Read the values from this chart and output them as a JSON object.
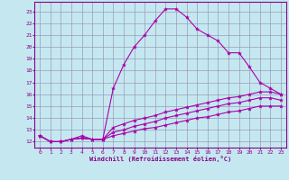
{
  "xlabel": "Windchill (Refroidissement éolien,°C)",
  "bg_color": "#c5e8f0",
  "grid_color": "#9999bb",
  "line_color": "#aa00aa",
  "xlim": [
    -0.5,
    23.5
  ],
  "ylim": [
    11.5,
    23.8
  ],
  "xticks": [
    0,
    1,
    2,
    3,
    4,
    5,
    6,
    7,
    8,
    9,
    10,
    11,
    12,
    13,
    14,
    15,
    16,
    17,
    18,
    19,
    20,
    21,
    22,
    23
  ],
  "yticks": [
    12,
    13,
    14,
    15,
    16,
    17,
    18,
    19,
    20,
    21,
    22,
    23
  ],
  "lines": [
    {
      "x": [
        0,
        1,
        2,
        3,
        4,
        5,
        6,
        7,
        8,
        9,
        10,
        11,
        12,
        13,
        14,
        15,
        16,
        17,
        18,
        19,
        20,
        21,
        22,
        23
      ],
      "y": [
        12.5,
        12.0,
        12.0,
        12.2,
        12.5,
        12.2,
        12.2,
        16.5,
        18.5,
        20.0,
        21.0,
        22.2,
        23.2,
        23.2,
        22.5,
        21.5,
        21.0,
        20.5,
        19.5,
        19.5,
        18.3,
        17.0,
        16.5,
        16.0
      ]
    },
    {
      "x": [
        0,
        1,
        2,
        3,
        4,
        5,
        6,
        7,
        8,
        9,
        10,
        11,
        12,
        13,
        14,
        15,
        16,
        17,
        18,
        19,
        20,
        21,
        22,
        23
      ],
      "y": [
        12.5,
        12.0,
        12.0,
        12.2,
        12.3,
        12.2,
        12.2,
        13.2,
        13.5,
        13.8,
        14.0,
        14.2,
        14.5,
        14.7,
        14.9,
        15.1,
        15.3,
        15.5,
        15.7,
        15.8,
        16.0,
        16.2,
        16.2,
        16.0
      ]
    },
    {
      "x": [
        0,
        1,
        2,
        3,
        4,
        5,
        6,
        7,
        8,
        9,
        10,
        11,
        12,
        13,
        14,
        15,
        16,
        17,
        18,
        19,
        20,
        21,
        22,
        23
      ],
      "y": [
        12.5,
        12.0,
        12.0,
        12.2,
        12.3,
        12.2,
        12.2,
        12.8,
        13.0,
        13.3,
        13.5,
        13.7,
        14.0,
        14.2,
        14.4,
        14.6,
        14.8,
        15.0,
        15.2,
        15.3,
        15.5,
        15.7,
        15.7,
        15.5
      ]
    },
    {
      "x": [
        0,
        1,
        2,
        3,
        4,
        5,
        6,
        7,
        8,
        9,
        10,
        11,
        12,
        13,
        14,
        15,
        16,
        17,
        18,
        19,
        20,
        21,
        22,
        23
      ],
      "y": [
        12.5,
        12.0,
        12.0,
        12.2,
        12.3,
        12.2,
        12.2,
        12.5,
        12.7,
        12.9,
        13.1,
        13.2,
        13.4,
        13.6,
        13.8,
        14.0,
        14.1,
        14.3,
        14.5,
        14.6,
        14.8,
        15.0,
        15.0,
        15.0
      ]
    }
  ]
}
